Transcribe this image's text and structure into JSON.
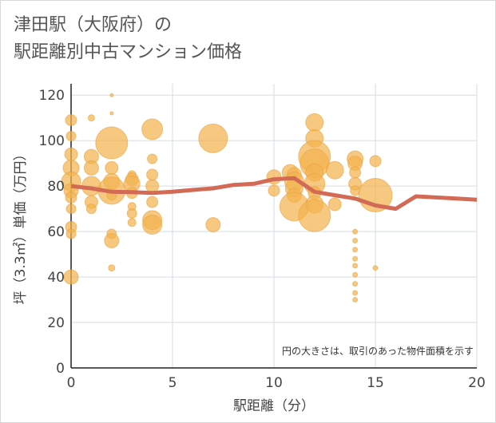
{
  "chart_data": {
    "type": "scatter",
    "title_line1": "津田駅（大阪府）の",
    "title_line2": "駅距離別中古マンション価格",
    "xlabel": "駅距離（分）",
    "ylabel": "坪（3.3㎡）単価（万円）",
    "note": "円の大きさは、取引のあった物件面積を示す",
    "xlim": [
      0,
      20
    ],
    "ylim": [
      0,
      125
    ],
    "x_ticks": [
      0,
      5,
      10,
      15,
      20
    ],
    "y_ticks": [
      0,
      20,
      40,
      60,
      80,
      100,
      120
    ],
    "colors": {
      "bubble": "#f2b34f",
      "line": "#d26a55",
      "grid": "#d5dde5"
    },
    "points": [
      {
        "x": 0,
        "y": 109,
        "s": 7
      },
      {
        "x": 0,
        "y": 102,
        "s": 6
      },
      {
        "x": 0,
        "y": 94,
        "s": 8
      },
      {
        "x": 0,
        "y": 88,
        "s": 10
      },
      {
        "x": 0,
        "y": 82,
        "s": 12
      },
      {
        "x": 0,
        "y": 78,
        "s": 9
      },
      {
        "x": 0,
        "y": 75,
        "s": 7
      },
      {
        "x": 0,
        "y": 70,
        "s": 6
      },
      {
        "x": 0,
        "y": 62,
        "s": 7
      },
      {
        "x": 0,
        "y": 59,
        "s": 6
      },
      {
        "x": 0,
        "y": 40,
        "s": 9
      },
      {
        "x": 1,
        "y": 110,
        "s": 4
      },
      {
        "x": 1,
        "y": 93,
        "s": 9
      },
      {
        "x": 1,
        "y": 88,
        "s": 9
      },
      {
        "x": 1,
        "y": 80,
        "s": 12
      },
      {
        "x": 1,
        "y": 73,
        "s": 8
      },
      {
        "x": 1,
        "y": 70,
        "s": 6
      },
      {
        "x": 2,
        "y": 120,
        "s": 2
      },
      {
        "x": 2,
        "y": 112,
        "s": 2
      },
      {
        "x": 2,
        "y": 99,
        "s": 20
      },
      {
        "x": 2,
        "y": 88,
        "s": 8
      },
      {
        "x": 2,
        "y": 82,
        "s": 10
      },
      {
        "x": 2,
        "y": 78,
        "s": 17
      },
      {
        "x": 2,
        "y": 76,
        "s": 6
      },
      {
        "x": 2,
        "y": 59,
        "s": 6
      },
      {
        "x": 2,
        "y": 56,
        "s": 9
      },
      {
        "x": 2,
        "y": 44,
        "s": 4
      },
      {
        "x": 3,
        "y": 85,
        "s": 5
      },
      {
        "x": 3,
        "y": 83,
        "s": 8
      },
      {
        "x": 3,
        "y": 81,
        "s": 10
      },
      {
        "x": 3,
        "y": 77,
        "s": 7
      },
      {
        "x": 3,
        "y": 71,
        "s": 5
      },
      {
        "x": 3,
        "y": 68,
        "s": 6
      },
      {
        "x": 3,
        "y": 64,
        "s": 5
      },
      {
        "x": 4,
        "y": 105,
        "s": 13
      },
      {
        "x": 4,
        "y": 92,
        "s": 6
      },
      {
        "x": 4,
        "y": 85,
        "s": 7
      },
      {
        "x": 4,
        "y": 80,
        "s": 8
      },
      {
        "x": 4,
        "y": 73,
        "s": 7
      },
      {
        "x": 4,
        "y": 65,
        "s": 12
      },
      {
        "x": 4,
        "y": 63,
        "s": 12
      },
      {
        "x": 7,
        "y": 101,
        "s": 18
      },
      {
        "x": 7,
        "y": 63,
        "s": 9
      },
      {
        "x": 10,
        "y": 84,
        "s": 9
      },
      {
        "x": 10,
        "y": 78,
        "s": 7
      },
      {
        "x": 10.8,
        "y": 86,
        "s": 10
      },
      {
        "x": 11,
        "y": 85,
        "s": 9
      },
      {
        "x": 11,
        "y": 82,
        "s": 12
      },
      {
        "x": 11,
        "y": 79,
        "s": 11
      },
      {
        "x": 11,
        "y": 76,
        "s": 9
      },
      {
        "x": 11,
        "y": 71,
        "s": 18
      },
      {
        "x": 12,
        "y": 108,
        "s": 11
      },
      {
        "x": 12,
        "y": 101,
        "s": 11
      },
      {
        "x": 12,
        "y": 93,
        "s": 20
      },
      {
        "x": 12,
        "y": 90,
        "s": 18
      },
      {
        "x": 12,
        "y": 86,
        "s": 11
      },
      {
        "x": 12,
        "y": 81,
        "s": 13
      },
      {
        "x": 12,
        "y": 77,
        "s": 8
      },
      {
        "x": 12,
        "y": 72,
        "s": 11
      },
      {
        "x": 12,
        "y": 67,
        "s": 20
      },
      {
        "x": 13,
        "y": 87,
        "s": 11
      },
      {
        "x": 13,
        "y": 72,
        "s": 8
      },
      {
        "x": 14,
        "y": 92,
        "s": 10
      },
      {
        "x": 14,
        "y": 90,
        "s": 9
      },
      {
        "x": 14,
        "y": 86,
        "s": 7
      },
      {
        "x": 14,
        "y": 81,
        "s": 8
      },
      {
        "x": 14,
        "y": 78,
        "s": 6
      },
      {
        "x": 14,
        "y": 60,
        "s": 3
      },
      {
        "x": 14,
        "y": 56,
        "s": 3
      },
      {
        "x": 14,
        "y": 52,
        "s": 3
      },
      {
        "x": 14,
        "y": 48,
        "s": 3
      },
      {
        "x": 14,
        "y": 45,
        "s": 3
      },
      {
        "x": 14,
        "y": 41,
        "s": 3
      },
      {
        "x": 14,
        "y": 37,
        "s": 3
      },
      {
        "x": 14,
        "y": 33,
        "s": 3
      },
      {
        "x": 14,
        "y": 30,
        "s": 3
      },
      {
        "x": 15,
        "y": 91,
        "s": 7
      },
      {
        "x": 15,
        "y": 76,
        "s": 21
      },
      {
        "x": 15,
        "y": 44,
        "s": 3
      }
    ],
    "trend": {
      "x": [
        0,
        1,
        2,
        3,
        4,
        5,
        6,
        7,
        8,
        9,
        10,
        11,
        12,
        13,
        14,
        15,
        16,
        17,
        18,
        19,
        20
      ],
      "y": [
        80,
        79,
        77.5,
        77.3,
        77,
        77.5,
        78.3,
        79,
        80.5,
        81,
        83,
        83.5,
        77.5,
        76,
        74.5,
        71.5,
        70,
        75.5,
        75,
        74.5,
        74
      ]
    }
  }
}
